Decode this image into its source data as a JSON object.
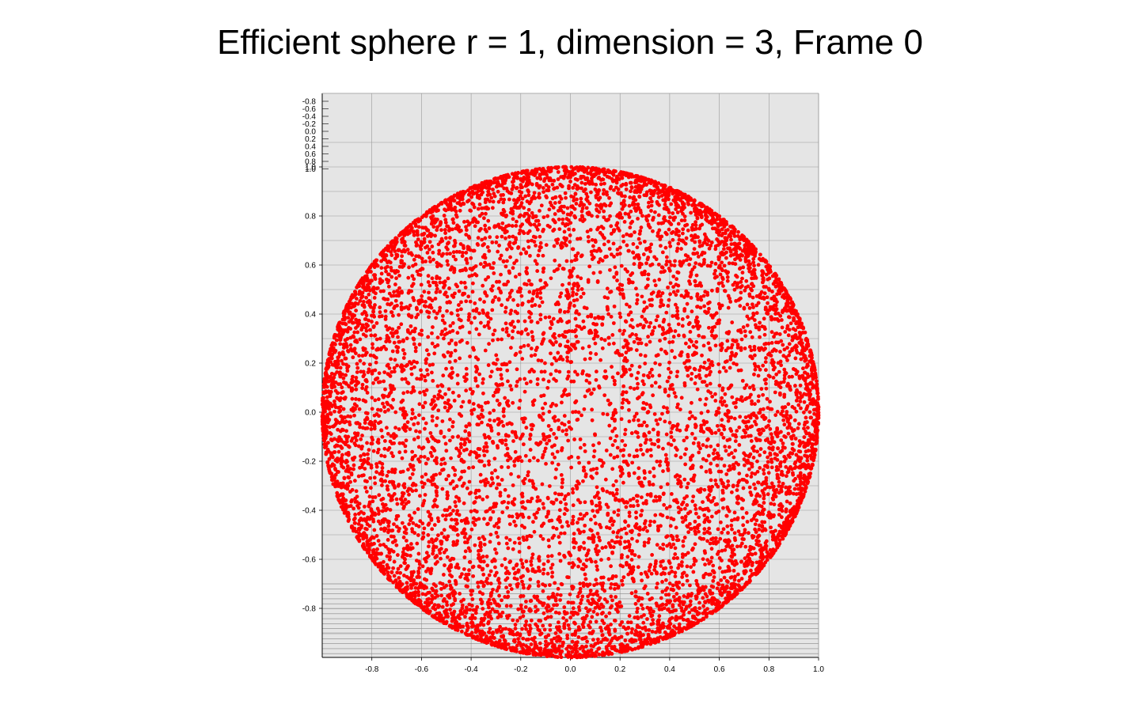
{
  "chart_data": {
    "type": "scatter",
    "title": "Efficient sphere r = 1, dimension = 3, Frame 0",
    "xlabel": "",
    "ylabel": "",
    "xlim": [
      -1.0,
      1.0
    ],
    "ylim": [
      -1.0,
      1.3
    ],
    "grid": true,
    "legend": "none",
    "marker_color": "#ff0000",
    "plot_background": "#e5e5e5",
    "grid_color": "#999999",
    "sphere": {
      "radius": 1,
      "dimension": 3,
      "frame": 0,
      "point_count": 9000,
      "center_x": 0.0,
      "center_y": 0.0,
      "projected_radius": 1.0
    },
    "x_ticks": [
      {
        "value": -0.8,
        "label": "-0.8"
      },
      {
        "value": -0.6,
        "label": "-0.6"
      },
      {
        "value": -0.4,
        "label": "-0.4"
      },
      {
        "value": -0.2,
        "label": "-0.2"
      },
      {
        "value": 0.0,
        "label": "0.0"
      },
      {
        "value": 0.2,
        "label": "0.2"
      },
      {
        "value": 0.4,
        "label": "0.4"
      },
      {
        "value": 0.6,
        "label": "0.6"
      },
      {
        "value": 0.8,
        "label": "0.8"
      },
      {
        "value": 1.0,
        "label": "1.0"
      }
    ],
    "y_ticks": [
      {
        "value": -0.8,
        "label": "-0.8"
      },
      {
        "value": -0.6,
        "label": "-0.6"
      },
      {
        "value": -0.4,
        "label": "-0.4"
      },
      {
        "value": -0.2,
        "label": "-0.2"
      },
      {
        "value": 0.0,
        "label": "0.0"
      },
      {
        "value": 0.2,
        "label": "0.2"
      },
      {
        "value": 0.4,
        "label": "0.4"
      },
      {
        "value": 0.6,
        "label": "0.6"
      },
      {
        "value": 0.8,
        "label": "0.8"
      },
      {
        "value": 1.0,
        "label": "1.0"
      }
    ],
    "compressed_y_ticks": [
      "-0.8",
      "-0.6",
      "-0.4",
      "-0.2",
      "0.0",
      "0.2",
      "0.4",
      "0.6",
      "0.8",
      "1.0"
    ]
  }
}
